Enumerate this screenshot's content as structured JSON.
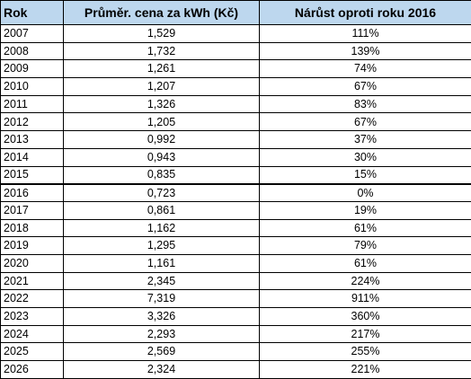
{
  "table": {
    "headers": {
      "year": "Rok",
      "price": "Průměr. cena za kWh (Kč)",
      "growth": "Nárůst oproti roku 2016"
    },
    "reference_year": "2016",
    "rows": [
      {
        "year": "2007",
        "price": "1,529",
        "growth": "111%"
      },
      {
        "year": "2008",
        "price": "1,732",
        "growth": "139%"
      },
      {
        "year": "2009",
        "price": "1,261",
        "growth": "74%"
      },
      {
        "year": "2010",
        "price": "1,207",
        "growth": "67%"
      },
      {
        "year": "2011",
        "price": "1,326",
        "growth": "83%"
      },
      {
        "year": "2012",
        "price": "1,205",
        "growth": "67%"
      },
      {
        "year": "2013",
        "price": "0,992",
        "growth": "37%"
      },
      {
        "year": "2014",
        "price": "0,943",
        "growth": "30%"
      },
      {
        "year": "2015",
        "price": "0,835",
        "growth": "15%"
      },
      {
        "year": "2016",
        "price": "0,723",
        "growth": "0%"
      },
      {
        "year": "2017",
        "price": "0,861",
        "growth": "19%"
      },
      {
        "year": "2018",
        "price": "1,162",
        "growth": "61%"
      },
      {
        "year": "2019",
        "price": "1,295",
        "growth": "79%"
      },
      {
        "year": "2020",
        "price": "1,161",
        "growth": "61%"
      },
      {
        "year": "2021",
        "price": "2,345",
        "growth": "224%"
      },
      {
        "year": "2022",
        "price": "7,319",
        "growth": "911%"
      },
      {
        "year": "2023",
        "price": "3,326",
        "growth": "360%"
      },
      {
        "year": "2024",
        "price": "2,293",
        "growth": "217%"
      },
      {
        "year": "2025",
        "price": "2,569",
        "growth": "255%"
      },
      {
        "year": "2026",
        "price": "2,324",
        "growth": "221%"
      }
    ]
  },
  "colors": {
    "header_background": "#bdd7ee",
    "grid_lines": "#000000",
    "text": "#000000"
  }
}
